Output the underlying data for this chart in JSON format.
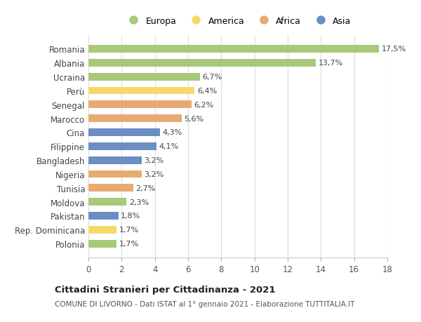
{
  "countries": [
    "Romania",
    "Albania",
    "Ucraina",
    "Perù",
    "Senegal",
    "Marocco",
    "Cina",
    "Filippine",
    "Bangladesh",
    "Nigeria",
    "Tunisia",
    "Moldova",
    "Pakistan",
    "Rep. Dominicana",
    "Polonia"
  ],
  "values": [
    17.5,
    13.7,
    6.7,
    6.4,
    6.2,
    5.6,
    4.3,
    4.1,
    3.2,
    3.2,
    2.7,
    2.3,
    1.8,
    1.7,
    1.7
  ],
  "labels": [
    "17,5%",
    "13,7%",
    "6,7%",
    "6,4%",
    "6,2%",
    "5,6%",
    "4,3%",
    "4,1%",
    "3,2%",
    "3,2%",
    "2,7%",
    "2,3%",
    "1,8%",
    "1,7%",
    "1,7%"
  ],
  "regions": [
    "Europa",
    "Europa",
    "Europa",
    "America",
    "Africa",
    "Africa",
    "Asia",
    "Asia",
    "Asia",
    "Africa",
    "Africa",
    "Europa",
    "Asia",
    "America",
    "Europa"
  ],
  "colors": {
    "Europa": "#a8c87a",
    "America": "#f5d96b",
    "Africa": "#e8aa72",
    "Asia": "#6b8fc4"
  },
  "legend_order": [
    "Europa",
    "America",
    "Africa",
    "Asia"
  ],
  "title": "Cittadini Stranieri per Cittadinanza - 2021",
  "subtitle": "COMUNE DI LIVORNO - Dati ISTAT al 1° gennaio 2021 - Elaborazione TUTTITALIA.IT",
  "xlim": [
    0,
    18
  ],
  "xticks": [
    0,
    2,
    4,
    6,
    8,
    10,
    12,
    14,
    16,
    18
  ],
  "background_color": "#ffffff",
  "grid_color": "#dddddd"
}
